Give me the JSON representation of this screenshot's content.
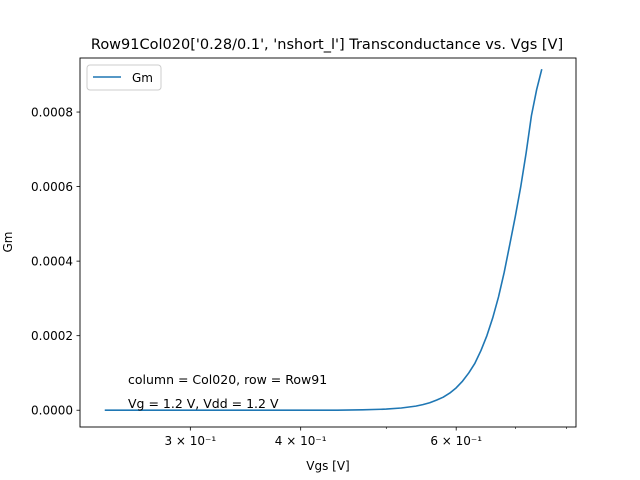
{
  "chart_data": {
    "type": "line",
    "title": "Row91Col020['0.28/0.1', 'nshort_l'] Transconductance vs. Vgs [V]",
    "xlabel": "Vgs [V]",
    "ylabel": "Gm",
    "xscale": "log",
    "xlim": [
      0.225,
      0.82
    ],
    "ylim": [
      -4.5e-05,
      0.000945
    ],
    "grid": false,
    "legend": {
      "placement": "upper-left",
      "entries": [
        "Gm"
      ]
    },
    "x_ticks": [
      {
        "value": 0.3,
        "label": "3 × 10⁻¹"
      },
      {
        "value": 0.4,
        "label": "4 × 10⁻¹"
      },
      {
        "value": 0.6,
        "label": "6 × 10⁻¹"
      }
    ],
    "x_minor_ticks": [
      0.5,
      0.7,
      0.8
    ],
    "y_ticks": [
      {
        "value": 0.0,
        "label": "0.0000"
      },
      {
        "value": 0.0002,
        "label": "0.0002"
      },
      {
        "value": 0.0004,
        "label": "0.0004"
      },
      {
        "value": 0.0006,
        "label": "0.0006"
      },
      {
        "value": 0.0008,
        "label": "0.0008"
      }
    ],
    "annotations": [
      "column = Col020, row = Row91",
      "Vg = 1.2 V, Vdd = 1.2 V"
    ],
    "series": [
      {
        "name": "Gm",
        "color": "#1f77b4",
        "x": [
          0.24,
          0.3,
          0.35,
          0.4,
          0.44,
          0.47,
          0.5,
          0.52,
          0.54,
          0.55,
          0.56,
          0.57,
          0.58,
          0.59,
          0.6,
          0.61,
          0.62,
          0.63,
          0.64,
          0.65,
          0.66,
          0.67,
          0.68,
          0.69,
          0.7,
          0.71,
          0.72,
          0.73,
          0.74,
          0.75
        ],
        "y": [
          0.0,
          0.0,
          0.0,
          0.0,
          0.0,
          1e-06,
          3e-06,
          6e-06,
          1.1e-05,
          1.5e-05,
          2e-05,
          2.7e-05,
          3.5e-05,
          4.6e-05,
          6e-05,
          7.8e-05,
          0.0001,
          0.000126,
          0.00016,
          0.0002,
          0.000248,
          0.000304,
          0.00037,
          0.000445,
          0.00052,
          0.0006,
          0.00069,
          0.00079,
          0.00086,
          0.000915
        ]
      }
    ]
  }
}
